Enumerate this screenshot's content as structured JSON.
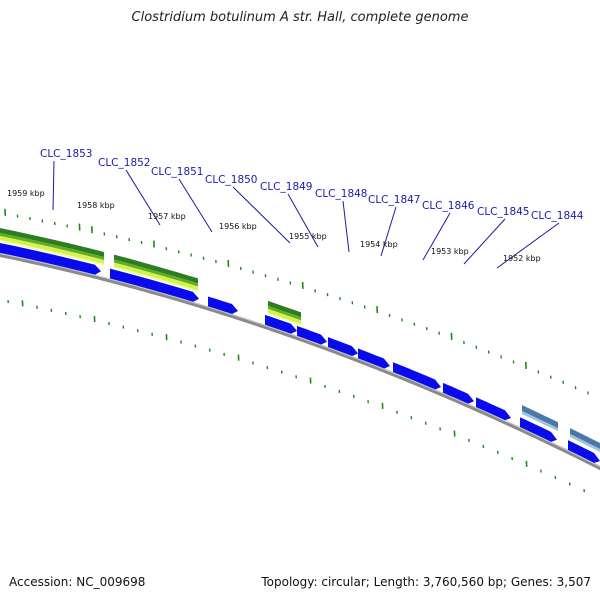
{
  "title": "Clostridium botulinum A str. Hall, complete genome",
  "accession_label": "Accession: NC_009698",
  "summary_label": "Topology: circular; Length: 3,760,560 bp; Genes: 3,507",
  "colors": {
    "gene_blue": "#0a0aee",
    "gene_steel": "#4a78a8",
    "track_dark_green": "#2e7d22",
    "track_mid_green": "#5fb020",
    "track_light_green": "#d8f050",
    "backbone": "#8a8a8a",
    "tick_green": "#1a8a1a",
    "label_blue": "#1a1aa8"
  },
  "gene_labels": [
    "CLC_1853",
    "CLC_1852",
    "CLC_1851",
    "CLC_1850",
    "CLC_1849",
    "CLC_1848",
    "CLC_1847",
    "CLC_1846",
    "CLC_1845",
    "CLC_1844"
  ],
  "kbp_labels": [
    "1959 kbp",
    "1958 kbp",
    "1957 kbp",
    "1956 kbp",
    "1955 kbp",
    "1954 kbp",
    "1953 kbp",
    "1952 kbp"
  ]
}
